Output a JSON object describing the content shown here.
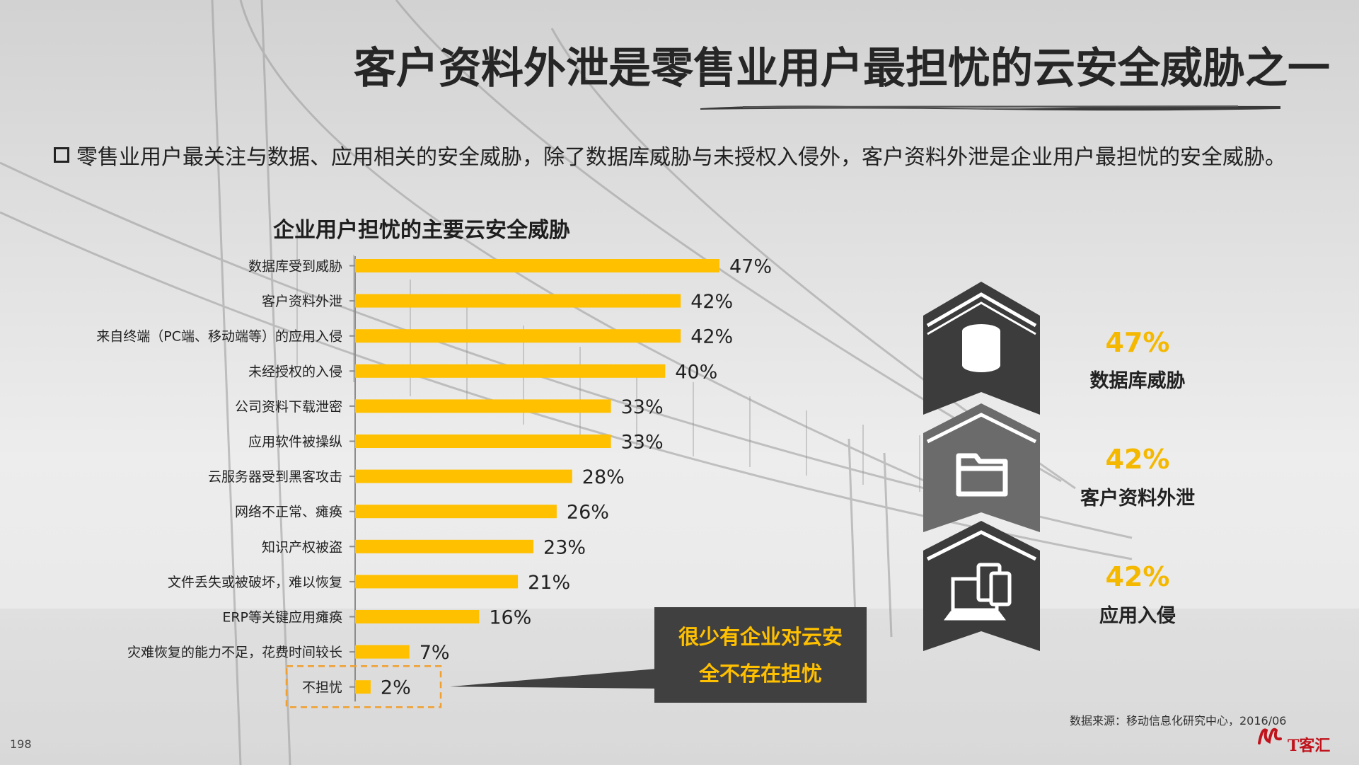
{
  "slide": {
    "title": "客户资料外泄是零售业用户最担忧的云安全威胁之一",
    "bullet_text": "零售业用户最关注与数据、应用相关的安全威胁，除了数据库威胁与未授权入侵外，客户资料外泄是企业用户最担忧的安全威胁。",
    "source": "数据来源：移动信息化研究中心，2016/06",
    "page_number": "198",
    "logo_text": "T客汇"
  },
  "callout": {
    "line1": "很少有企业对云安",
    "line2": "全不存在担忧"
  },
  "badges": [
    {
      "value": "47%",
      "label": "数据库威胁",
      "icon": "database-icon"
    },
    {
      "value": "42%",
      "label": "客户资料外泄",
      "icon": "folder-icon"
    },
    {
      "value": "42%",
      "label": "应用入侵",
      "icon": "devices-icon"
    }
  ],
  "colors": {
    "bar": "#ffc000",
    "badge_dark": "#3c3c3c",
    "badge_mid": "#6b6b6b",
    "highlight_border": "#f0a030"
  },
  "chart_data": {
    "type": "bar",
    "orientation": "horizontal",
    "title": "企业用户担忧的主要云安全威胁",
    "categories": [
      "数据库受到威胁",
      "客户资料外泄",
      "来自终端（PC端、移动端等）的应用入侵",
      "未经授权的入侵",
      "公司资料下载泄密",
      "应用软件被操纵",
      "云服务器受到黑客攻击",
      "网络不正常、瘫痪",
      "知识产权被盗",
      "文件丢失或被破坏，难以恢复",
      "ERP等关键应用瘫痪",
      "灾难恢复的能力不足，花费时间较长",
      "不担忧"
    ],
    "values": [
      47,
      42,
      42,
      40,
      33,
      33,
      28,
      26,
      23,
      21,
      16,
      7,
      2
    ],
    "value_labels": [
      "47%",
      "42%",
      "42%",
      "40%",
      "33%",
      "33%",
      "28%",
      "26%",
      "23%",
      "21%",
      "16%",
      "7%",
      "2%"
    ],
    "xlim": [
      0,
      50
    ],
    "grid": false,
    "legend": "none",
    "highlighted_category": "不担忧"
  }
}
